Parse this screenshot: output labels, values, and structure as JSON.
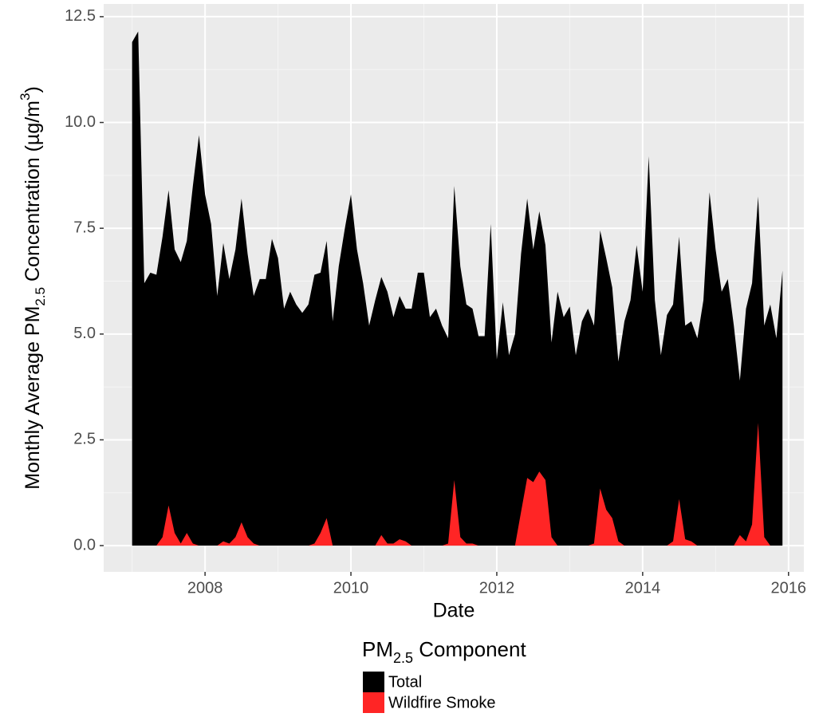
{
  "chart_data": {
    "type": "area",
    "x_label": "Date",
    "y_label": [
      "Monthly Average PM",
      "2.5",
      " Concentration (µg/m",
      "3",
      ")"
    ],
    "legend_title": [
      "PM",
      "2.5",
      " Component"
    ],
    "x": [
      2007.0,
      2007.083,
      2007.167,
      2007.25,
      2007.333,
      2007.417,
      2007.5,
      2007.583,
      2007.667,
      2007.75,
      2007.833,
      2007.917,
      2008.0,
      2008.083,
      2008.167,
      2008.25,
      2008.333,
      2008.417,
      2008.5,
      2008.583,
      2008.667,
      2008.75,
      2008.833,
      2008.917,
      2009.0,
      2009.083,
      2009.167,
      2009.25,
      2009.333,
      2009.417,
      2009.5,
      2009.583,
      2009.667,
      2009.75,
      2009.833,
      2009.917,
      2010.0,
      2010.083,
      2010.167,
      2010.25,
      2010.333,
      2010.417,
      2010.5,
      2010.583,
      2010.667,
      2010.75,
      2010.833,
      2010.917,
      2011.0,
      2011.083,
      2011.167,
      2011.25,
      2011.333,
      2011.417,
      2011.5,
      2011.583,
      2011.667,
      2011.75,
      2011.833,
      2011.917,
      2012.0,
      2012.083,
      2012.167,
      2012.25,
      2012.333,
      2012.417,
      2012.5,
      2012.583,
      2012.667,
      2012.75,
      2012.833,
      2012.917,
      2013.0,
      2013.083,
      2013.167,
      2013.25,
      2013.333,
      2013.417,
      2013.5,
      2013.583,
      2013.667,
      2013.75,
      2013.833,
      2013.917,
      2014.0,
      2014.083,
      2014.167,
      2014.25,
      2014.333,
      2014.417,
      2014.5,
      2014.583,
      2014.667,
      2014.75,
      2014.833,
      2014.917,
      2015.0,
      2015.083,
      2015.167,
      2015.25,
      2015.333,
      2015.417,
      2015.5,
      2015.583,
      2015.667,
      2015.75,
      2015.833,
      2015.917
    ],
    "series": [
      {
        "name": "Total",
        "color": "#000000",
        "values": [
          11.9,
          12.15,
          6.2,
          6.45,
          6.4,
          7.3,
          8.4,
          7.0,
          6.7,
          7.2,
          8.5,
          9.7,
          8.3,
          7.6,
          5.9,
          7.15,
          6.3,
          7.0,
          8.2,
          6.9,
          5.9,
          6.3,
          6.3,
          7.25,
          6.8,
          5.6,
          6.0,
          5.7,
          5.5,
          5.7,
          6.4,
          6.45,
          7.2,
          5.3,
          6.6,
          7.5,
          8.3,
          7.0,
          6.2,
          5.2,
          5.8,
          6.35,
          6.0,
          5.4,
          5.9,
          5.6,
          5.6,
          6.45,
          6.45,
          5.4,
          5.6,
          5.2,
          4.9,
          8.5,
          6.6,
          5.7,
          5.6,
          4.95,
          4.95,
          7.6,
          4.4,
          5.75,
          4.5,
          5.0,
          6.9,
          8.2,
          7.0,
          7.9,
          7.1,
          4.8,
          6.0,
          5.4,
          5.65,
          4.5,
          5.3,
          5.6,
          5.2,
          7.45,
          6.8,
          6.1,
          4.35,
          5.3,
          5.8,
          7.1,
          6.0,
          9.2,
          5.8,
          4.5,
          5.45,
          5.7,
          7.3,
          5.2,
          5.3,
          4.9,
          5.8,
          8.35,
          7.0,
          6.0,
          6.3,
          5.2,
          3.9,
          5.6,
          6.2,
          8.25,
          5.2,
          5.7,
          4.9,
          6.5
        ]
      },
      {
        "name": "Wildfire Smoke",
        "color": "#ff2525",
        "values": [
          0,
          0,
          0,
          0,
          0,
          0.2,
          0.95,
          0.3,
          0.05,
          0.3,
          0.05,
          0,
          0,
          0,
          0,
          0.1,
          0.05,
          0.2,
          0.55,
          0.2,
          0.05,
          0,
          0,
          0,
          0,
          0,
          0,
          0,
          0,
          0,
          0.05,
          0.3,
          0.65,
          0,
          0,
          0,
          0,
          0,
          0,
          0,
          0,
          0.25,
          0.05,
          0.05,
          0.15,
          0.1,
          0,
          0,
          0,
          0,
          0,
          0,
          0.05,
          1.55,
          0.2,
          0.05,
          0.05,
          0,
          0,
          0,
          0,
          0,
          0,
          0,
          0.8,
          1.6,
          1.5,
          1.75,
          1.55,
          0.2,
          0,
          0,
          0,
          0,
          0,
          0,
          0.05,
          1.35,
          0.85,
          0.65,
          0.1,
          0,
          0,
          0,
          0,
          0,
          0,
          0,
          0,
          0.1,
          1.1,
          0.15,
          0.1,
          0,
          0,
          0,
          0,
          0,
          0,
          0,
          0.25,
          0.1,
          0.5,
          2.9,
          0.2,
          0,
          0,
          0
        ]
      }
    ],
    "xlim": [
      2006.61,
      2016.21
    ],
    "xticks": [
      2008,
      2010,
      2012,
      2014,
      2016
    ],
    "ylim": [
      -0.62,
      12.8
    ],
    "yticks": [
      {
        "value": 0,
        "label": "0.0"
      },
      {
        "value": 2.5,
        "label": "2.5"
      },
      {
        "value": 5,
        "label": "5.0"
      },
      {
        "value": 7.5,
        "label": "7.5"
      },
      {
        "value": 10,
        "label": "10.0"
      },
      {
        "value": 12.5,
        "label": "12.5"
      }
    ],
    "grid": true
  }
}
